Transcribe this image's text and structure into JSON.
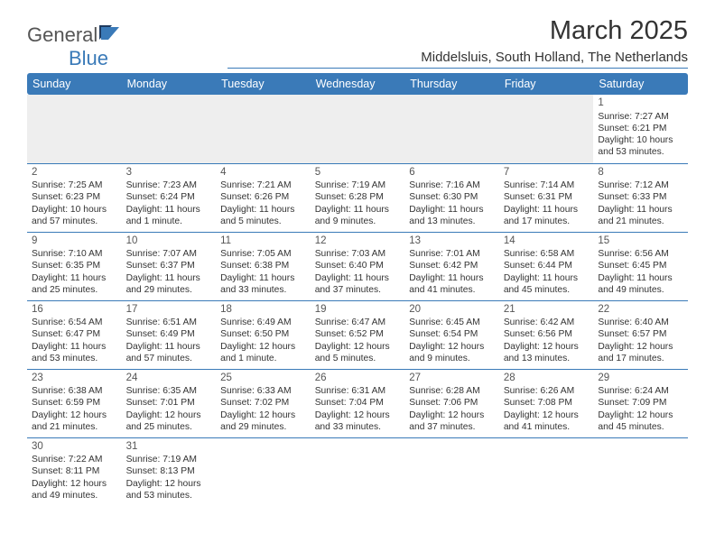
{
  "logo": {
    "text_a": "General",
    "text_b": "Blue"
  },
  "title": "March 2025",
  "location": "Middelsluis, South Holland, The Netherlands",
  "colors": {
    "header_bg": "#3a7ab8",
    "header_text": "#ffffff",
    "border": "#3a7ab8",
    "blank_bg": "#eeeeee",
    "text": "#333333"
  },
  "day_headers": [
    "Sunday",
    "Monday",
    "Tuesday",
    "Wednesday",
    "Thursday",
    "Friday",
    "Saturday"
  ],
  "weeks": [
    [
      {
        "blank": true
      },
      {
        "blank": true
      },
      {
        "blank": true
      },
      {
        "blank": true
      },
      {
        "blank": true
      },
      {
        "blank": true
      },
      {
        "n": "1",
        "sunrise": "Sunrise: 7:27 AM",
        "sunset": "Sunset: 6:21 PM",
        "daylight": "Daylight: 10 hours and 53 minutes."
      }
    ],
    [
      {
        "n": "2",
        "sunrise": "Sunrise: 7:25 AM",
        "sunset": "Sunset: 6:23 PM",
        "daylight": "Daylight: 10 hours and 57 minutes."
      },
      {
        "n": "3",
        "sunrise": "Sunrise: 7:23 AM",
        "sunset": "Sunset: 6:24 PM",
        "daylight": "Daylight: 11 hours and 1 minute."
      },
      {
        "n": "4",
        "sunrise": "Sunrise: 7:21 AM",
        "sunset": "Sunset: 6:26 PM",
        "daylight": "Daylight: 11 hours and 5 minutes."
      },
      {
        "n": "5",
        "sunrise": "Sunrise: 7:19 AM",
        "sunset": "Sunset: 6:28 PM",
        "daylight": "Daylight: 11 hours and 9 minutes."
      },
      {
        "n": "6",
        "sunrise": "Sunrise: 7:16 AM",
        "sunset": "Sunset: 6:30 PM",
        "daylight": "Daylight: 11 hours and 13 minutes."
      },
      {
        "n": "7",
        "sunrise": "Sunrise: 7:14 AM",
        "sunset": "Sunset: 6:31 PM",
        "daylight": "Daylight: 11 hours and 17 minutes."
      },
      {
        "n": "8",
        "sunrise": "Sunrise: 7:12 AM",
        "sunset": "Sunset: 6:33 PM",
        "daylight": "Daylight: 11 hours and 21 minutes."
      }
    ],
    [
      {
        "n": "9",
        "sunrise": "Sunrise: 7:10 AM",
        "sunset": "Sunset: 6:35 PM",
        "daylight": "Daylight: 11 hours and 25 minutes."
      },
      {
        "n": "10",
        "sunrise": "Sunrise: 7:07 AM",
        "sunset": "Sunset: 6:37 PM",
        "daylight": "Daylight: 11 hours and 29 minutes."
      },
      {
        "n": "11",
        "sunrise": "Sunrise: 7:05 AM",
        "sunset": "Sunset: 6:38 PM",
        "daylight": "Daylight: 11 hours and 33 minutes."
      },
      {
        "n": "12",
        "sunrise": "Sunrise: 7:03 AM",
        "sunset": "Sunset: 6:40 PM",
        "daylight": "Daylight: 11 hours and 37 minutes."
      },
      {
        "n": "13",
        "sunrise": "Sunrise: 7:01 AM",
        "sunset": "Sunset: 6:42 PM",
        "daylight": "Daylight: 11 hours and 41 minutes."
      },
      {
        "n": "14",
        "sunrise": "Sunrise: 6:58 AM",
        "sunset": "Sunset: 6:44 PM",
        "daylight": "Daylight: 11 hours and 45 minutes."
      },
      {
        "n": "15",
        "sunrise": "Sunrise: 6:56 AM",
        "sunset": "Sunset: 6:45 PM",
        "daylight": "Daylight: 11 hours and 49 minutes."
      }
    ],
    [
      {
        "n": "16",
        "sunrise": "Sunrise: 6:54 AM",
        "sunset": "Sunset: 6:47 PM",
        "daylight": "Daylight: 11 hours and 53 minutes."
      },
      {
        "n": "17",
        "sunrise": "Sunrise: 6:51 AM",
        "sunset": "Sunset: 6:49 PM",
        "daylight": "Daylight: 11 hours and 57 minutes."
      },
      {
        "n": "18",
        "sunrise": "Sunrise: 6:49 AM",
        "sunset": "Sunset: 6:50 PM",
        "daylight": "Daylight: 12 hours and 1 minute."
      },
      {
        "n": "19",
        "sunrise": "Sunrise: 6:47 AM",
        "sunset": "Sunset: 6:52 PM",
        "daylight": "Daylight: 12 hours and 5 minutes."
      },
      {
        "n": "20",
        "sunrise": "Sunrise: 6:45 AM",
        "sunset": "Sunset: 6:54 PM",
        "daylight": "Daylight: 12 hours and 9 minutes."
      },
      {
        "n": "21",
        "sunrise": "Sunrise: 6:42 AM",
        "sunset": "Sunset: 6:56 PM",
        "daylight": "Daylight: 12 hours and 13 minutes."
      },
      {
        "n": "22",
        "sunrise": "Sunrise: 6:40 AM",
        "sunset": "Sunset: 6:57 PM",
        "daylight": "Daylight: 12 hours and 17 minutes."
      }
    ],
    [
      {
        "n": "23",
        "sunrise": "Sunrise: 6:38 AM",
        "sunset": "Sunset: 6:59 PM",
        "daylight": "Daylight: 12 hours and 21 minutes."
      },
      {
        "n": "24",
        "sunrise": "Sunrise: 6:35 AM",
        "sunset": "Sunset: 7:01 PM",
        "daylight": "Daylight: 12 hours and 25 minutes."
      },
      {
        "n": "25",
        "sunrise": "Sunrise: 6:33 AM",
        "sunset": "Sunset: 7:02 PM",
        "daylight": "Daylight: 12 hours and 29 minutes."
      },
      {
        "n": "26",
        "sunrise": "Sunrise: 6:31 AM",
        "sunset": "Sunset: 7:04 PM",
        "daylight": "Daylight: 12 hours and 33 minutes."
      },
      {
        "n": "27",
        "sunrise": "Sunrise: 6:28 AM",
        "sunset": "Sunset: 7:06 PM",
        "daylight": "Daylight: 12 hours and 37 minutes."
      },
      {
        "n": "28",
        "sunrise": "Sunrise: 6:26 AM",
        "sunset": "Sunset: 7:08 PM",
        "daylight": "Daylight: 12 hours and 41 minutes."
      },
      {
        "n": "29",
        "sunrise": "Sunrise: 6:24 AM",
        "sunset": "Sunset: 7:09 PM",
        "daylight": "Daylight: 12 hours and 45 minutes."
      }
    ],
    [
      {
        "n": "30",
        "sunrise": "Sunrise: 7:22 AM",
        "sunset": "Sunset: 8:11 PM",
        "daylight": "Daylight: 12 hours and 49 minutes."
      },
      {
        "n": "31",
        "sunrise": "Sunrise: 7:19 AM",
        "sunset": "Sunset: 8:13 PM",
        "daylight": "Daylight: 12 hours and 53 minutes."
      },
      {
        "empty": true
      },
      {
        "empty": true
      },
      {
        "empty": true
      },
      {
        "empty": true
      },
      {
        "empty": true
      }
    ]
  ]
}
